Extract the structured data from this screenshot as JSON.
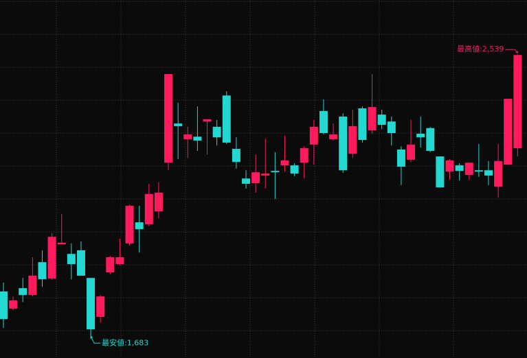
{
  "chart_data": {
    "type": "candlestick",
    "open": [
      1819,
      1767,
      1829,
      1808,
      1908,
      1858,
      1962,
      1933,
      1944,
      1860,
      1742,
      1877,
      1902,
      1965,
      2029,
      2023,
      2062,
      2210,
      2329,
      2281,
      2289,
      2335,
      2319,
      2414,
      2252,
      2162,
      2148,
      2171,
      2185,
      2202,
      2202,
      2210,
      2265,
      2367,
      2281,
      2350,
      2237,
      2375,
      2308,
      2356,
      2335,
      2250,
      2219,
      2298,
      2315,
      2229,
      2183,
      2202,
      2173,
      2187,
      2187,
      2137,
      2204,
      2254
    ],
    "high": [
      1846,
      1804,
      1860,
      1923,
      1944,
      1996,
      2054,
      1965,
      1971,
      1860,
      1808,
      1927,
      1979,
      2083,
      2079,
      2146,
      2150,
      2479,
      2392,
      2319,
      2381,
      2342,
      2340,
      2427,
      2287,
      2187,
      2235,
      2283,
      2242,
      2292,
      2208,
      2260,
      2340,
      2402,
      2329,
      2360,
      2371,
      2381,
      2479,
      2371,
      2350,
      2260,
      2340,
      2350,
      2319,
      2229,
      2221,
      2208,
      2210,
      2267,
      2215,
      2267,
      2404,
      2539
    ],
    "low": [
      1708,
      1762,
      1787,
      1804,
      1833,
      1854,
      1962,
      1856,
      1867,
      1683,
      1725,
      1871,
      1898,
      1958,
      1937,
      2017,
      2042,
      2187,
      2221,
      2225,
      2246,
      2235,
      2262,
      2267,
      2192,
      2131,
      2119,
      2131,
      2100,
      2183,
      2169,
      2162,
      2204,
      2296,
      2277,
      2179,
      2225,
      2271,
      2298,
      2312,
      2262,
      2142,
      2212,
      2256,
      2242,
      2135,
      2158,
      2156,
      2158,
      2167,
      2142,
      2104,
      2204,
      2229
    ],
    "close": [
      1735,
      1792,
      1808,
      1867,
      1856,
      1985,
      1967,
      1902,
      1867,
      1704,
      1804,
      1923,
      1923,
      2079,
      2008,
      2115,
      2119,
      2479,
      2321,
      2296,
      2277,
      2342,
      2287,
      2271,
      2212,
      2146,
      2181,
      2177,
      2181,
      2217,
      2177,
      2254,
      2319,
      2300,
      2296,
      2187,
      2321,
      2279,
      2379,
      2325,
      2300,
      2198,
      2265,
      2287,
      2246,
      2135,
      2217,
      2185,
      2210,
      2183,
      2171,
      2215,
      2404,
      2537
    ],
    "up_color": "#ff1a5e",
    "down_color": "#22d8d0",
    "ylim": [
      1617,
      2704
    ],
    "yticks": [
      1700,
      1800,
      1900,
      2000,
      2100,
      2200,
      2300,
      2400,
      2500,
      2600,
      2700
    ],
    "grid": true,
    "annotations": [
      "最高値:2,539",
      "最安値:1,683"
    ]
  }
}
